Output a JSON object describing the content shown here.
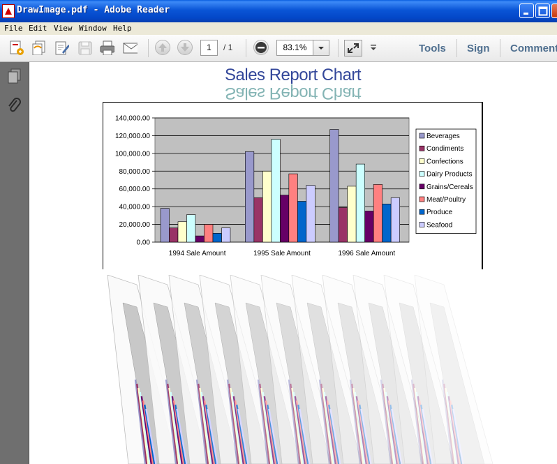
{
  "window": {
    "title": "DrawImage.pdf - Adobe Reader"
  },
  "menu": {
    "file": "File",
    "edit": "Edit",
    "view": "View",
    "window": "Window",
    "help": "Help"
  },
  "toolbar": {
    "page_current": "1",
    "page_total": "/ 1",
    "zoom": "83.1%",
    "tools": "Tools",
    "sign": "Sign",
    "comment": "Comment"
  },
  "document": {
    "title": "Sales Report Chart",
    "title_reflection": "Sales Report Chart"
  },
  "chart_data": {
    "type": "bar",
    "title": "",
    "categories": [
      "1994 Sale Amount",
      "1995 Sale Amount",
      "1996 Sale Amount"
    ],
    "yticks": [
      "0.00",
      "20,000.00",
      "40,000.00",
      "60,000.00",
      "80,000.00",
      "100,000.00",
      "120,000.00",
      "140,000.00"
    ],
    "ylim": [
      0,
      140000
    ],
    "grid": true,
    "legend_position": "right",
    "series": [
      {
        "name": "Beverages",
        "color": "#9999cc",
        "values": [
          38000,
          102000,
          127000
        ]
      },
      {
        "name": "Condiments",
        "color": "#993366",
        "values": [
          16000,
          50000,
          39000
        ]
      },
      {
        "name": "Confections",
        "color": "#ffffcc",
        "values": [
          23000,
          80000,
          63000
        ]
      },
      {
        "name": "Dairy Products",
        "color": "#ccffff",
        "values": [
          31000,
          116000,
          88000
        ]
      },
      {
        "name": "Grains/Cereals",
        "color": "#660066",
        "values": [
          7000,
          53000,
          35000
        ]
      },
      {
        "name": "Meat/Poultry",
        "color": "#ff8080",
        "values": [
          20000,
          77000,
          65000
        ]
      },
      {
        "name": "Produce",
        "color": "#0066cc",
        "values": [
          10000,
          46000,
          43000
        ]
      },
      {
        "name": "Seafood",
        "color": "#ccccff",
        "values": [
          16000,
          64000,
          50000
        ]
      }
    ]
  }
}
